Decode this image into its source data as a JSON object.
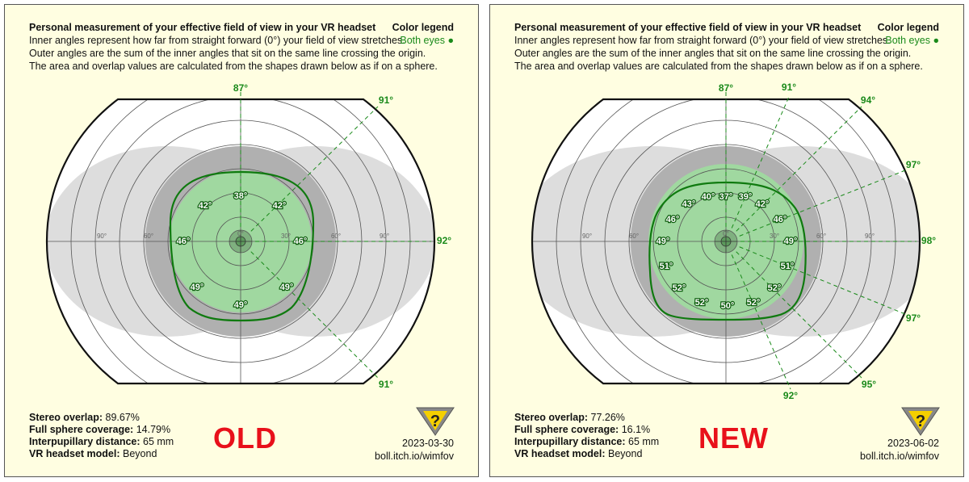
{
  "panels": [
    {
      "id": "left",
      "title": "Personal measurement of your effective field of view in your VR headset",
      "desc1": "Inner angles represent how far from straight forward (0°) your field of view stretches.",
      "desc2": "Outer angles are the sum of the inner angles that sit on the same line crossing the origin.",
      "desc3": "The area and overlap values are calculated from the shapes drawn below as if on a sphere.",
      "legend_title": "Color legend",
      "legend_item": "Both eyes ●",
      "stats": {
        "stereo_label": "Stereo overlap:",
        "stereo_value": "89.67%",
        "sphere_label": "Full sphere coverage:",
        "sphere_value": "14.79%",
        "ipd_label": "Interpupillary distance:",
        "ipd_value": "65 mm",
        "model_label": "VR headset model:",
        "model_value": "Beyond"
      },
      "version_label": "OLD",
      "date": "2023-03-30",
      "site": "boll.itch.io/wimfov",
      "ring_labels": [
        "0°",
        "30°",
        "60°",
        "90°",
        "60°",
        "90°"
      ],
      "outer_labels": [
        "87°",
        "91°",
        "92°",
        "91°"
      ],
      "inner_labels": [
        "38°",
        "42°",
        "46°",
        "49°",
        "49°",
        "49°",
        "46°",
        "42°"
      ],
      "fov_degrees": [
        38,
        42,
        46,
        49,
        49,
        49,
        46,
        42
      ]
    },
    {
      "id": "right",
      "title": "Personal measurement of your effective field of view in your VR headset",
      "desc1": "Inner angles represent how far from straight forward (0°) your field of view stretches.",
      "desc2": "Outer angles are the sum of the inner angles that sit on the same line crossing the origin.",
      "desc3": "The area and overlap values are calculated from the shapes drawn below as if on a sphere.",
      "legend_title": "Color legend",
      "legend_item": "Both eyes ●",
      "stats": {
        "stereo_label": "Stereo overlap:",
        "stereo_value": "77.26%",
        "sphere_label": "Full sphere coverage:",
        "sphere_value": "16.1%",
        "ipd_label": "Interpupillary distance:",
        "ipd_value": "65 mm",
        "model_label": "VR headset model:",
        "model_value": "Beyond"
      },
      "version_label": "NEW",
      "date": "2023-06-02",
      "site": "boll.itch.io/wimfov",
      "ring_labels": [
        "0°",
        "30°",
        "60°",
        "90°",
        "60°",
        "90°"
      ],
      "outer_labels": [
        "87°",
        "91°",
        "94°",
        "97°",
        "98°",
        "97°",
        "95°",
        "92°"
      ],
      "inner_labels": [
        "37°",
        "39°",
        "42°",
        "46°",
        "49°",
        "51°",
        "52°",
        "52°",
        "50°",
        "52°",
        "52°",
        "51°",
        "49°",
        "46°",
        "43°",
        "40°"
      ],
      "fov_degrees": [
        37,
        39,
        42,
        46,
        49,
        51,
        52,
        52,
        50,
        52,
        52,
        51,
        49,
        46,
        43,
        40
      ]
    }
  ],
  "colors": {
    "green": "#1a8a1a",
    "old_new_red": "#e8101a",
    "background": "#fffee1"
  }
}
